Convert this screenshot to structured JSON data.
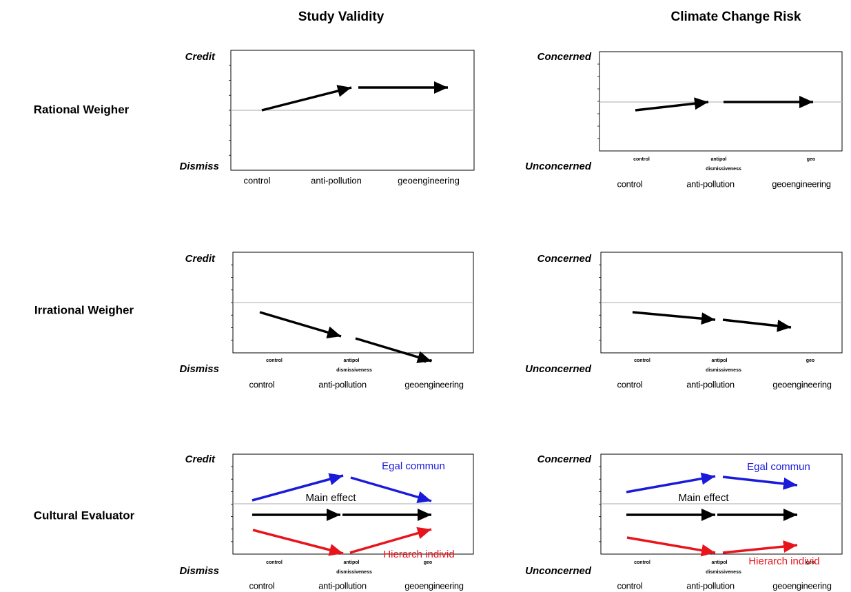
{
  "columns": [
    "Study Validity",
    "Climate Change Risk"
  ],
  "rows": [
    {
      "label": "Rational Weigher",
      "panels": [
        {
          "top": "Credit",
          "bottom": "Dismiss",
          "x_labels": [
            "control",
            "anti-pollution",
            "geoengineering"
          ]
        },
        {
          "top": "Concerned",
          "bottom": "Unconcerned",
          "small_labels": [
            "control",
            "antipol",
            "geo"
          ],
          "small_sub": "dismissiveness",
          "x_labels": [
            "control",
            "anti-pollution",
            "geoengineering"
          ]
        }
      ]
    },
    {
      "label": "Irrational Weigher",
      "panels": [
        {
          "top": "Credit",
          "bottom": "Dismiss",
          "small_labels": [
            "control",
            "antipol",
            "geo"
          ],
          "small_sub": "dismissiveness",
          "x_labels": [
            "control",
            "anti-pollution",
            "geoengineering"
          ]
        },
        {
          "top": "Concerned",
          "bottom": "Unconcerned",
          "small_labels": [
            "control",
            "antipol",
            "geo"
          ],
          "small_sub": "dismissiveness",
          "x_labels": [
            "control",
            "anti-pollution",
            "geoengineering"
          ]
        }
      ]
    },
    {
      "label": "Cultural Evaluator",
      "panels": [
        {
          "top": "Credit",
          "bottom": "Dismiss",
          "small_labels": [
            "control",
            "antipol",
            "geo"
          ],
          "small_sub": "dismissiveness",
          "x_labels": [
            "control",
            "anti-pollution",
            "geoengineering"
          ],
          "series_labels": [
            "Egal commun",
            "Main effect",
            "Hierarch individ"
          ]
        },
        {
          "top": "Concerned",
          "bottom": "Unconcerned",
          "small_labels": [
            "control",
            "antipol",
            "geo"
          ],
          "small_sub": "dismissiveness",
          "x_labels": [
            "control",
            "anti-pollution",
            "geoengineering"
          ],
          "series_labels": [
            "Egal commun",
            "Main effect",
            "Hierarch individ"
          ]
        }
      ]
    }
  ]
}
